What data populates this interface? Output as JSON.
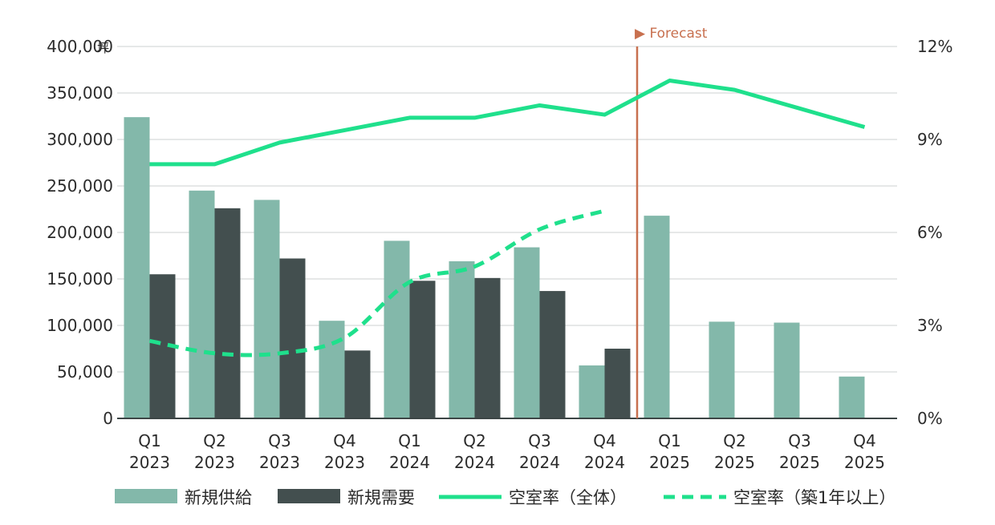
{
  "chart_data": {
    "type": "bar",
    "title": "",
    "categories": [
      [
        "Q1",
        "2023"
      ],
      [
        "Q2",
        "2023"
      ],
      [
        "Q3",
        "2023"
      ],
      [
        "Q4",
        "2023"
      ],
      [
        "Q1",
        "2024"
      ],
      [
        "Q2",
        "2024"
      ],
      [
        "Q3",
        "2024"
      ],
      [
        "Q4",
        "2024"
      ],
      [
        "Q1",
        "2025"
      ],
      [
        "Q2",
        "2025"
      ],
      [
        "Q3",
        "2025"
      ],
      [
        "Q4",
        "2025"
      ]
    ],
    "y_left": {
      "unit": "坪",
      "ylim": [
        0,
        400000
      ],
      "ticks": [
        0,
        50000,
        100000,
        150000,
        200000,
        250000,
        300000,
        350000,
        400000
      ],
      "tick_labels": [
        "0",
        "50,000",
        "100,000",
        "150,000",
        "200,000",
        "250,000",
        "300,000",
        "350,000",
        "400,000"
      ]
    },
    "y_right": {
      "ylim": [
        0,
        12
      ],
      "ticks": [
        0,
        3,
        6,
        9,
        12
      ],
      "tick_labels": [
        "0%",
        "3%",
        "6%",
        "9%",
        "12%"
      ]
    },
    "grid": true,
    "legend_position": "bottom",
    "series": [
      {
        "name": "新規供給",
        "kind": "bar",
        "axis": "left",
        "color": "#83b8aa",
        "values": [
          324000,
          245000,
          235000,
          105000,
          191000,
          169000,
          184000,
          57000,
          218000,
          104000,
          103000,
          45000
        ]
      },
      {
        "name": "新規需要",
        "kind": "bar",
        "axis": "left",
        "color": "#434f4f",
        "values": [
          155000,
          226000,
          172000,
          73000,
          148000,
          151000,
          137000,
          75000,
          null,
          null,
          null,
          null
        ]
      },
      {
        "name": "空室率（全体）",
        "kind": "line",
        "axis": "right",
        "style": "solid",
        "color": "#1fe08c",
        "values": [
          8.2,
          8.2,
          8.9,
          9.3,
          9.7,
          9.7,
          10.1,
          9.8,
          10.9,
          10.6,
          10.0,
          9.4
        ]
      },
      {
        "name": "空室率（築1年以上）",
        "kind": "line",
        "axis": "right",
        "style": "dashed",
        "color": "#1fe08c",
        "values": [
          2.5,
          2.1,
          2.1,
          2.6,
          4.4,
          4.9,
          6.1,
          6.7,
          null,
          null,
          null,
          null
        ]
      }
    ],
    "annotations": [
      {
        "text": "Forecast",
        "marker": "▶",
        "between_categories": [
          7,
          8
        ],
        "color": "#c8704f"
      }
    ]
  }
}
